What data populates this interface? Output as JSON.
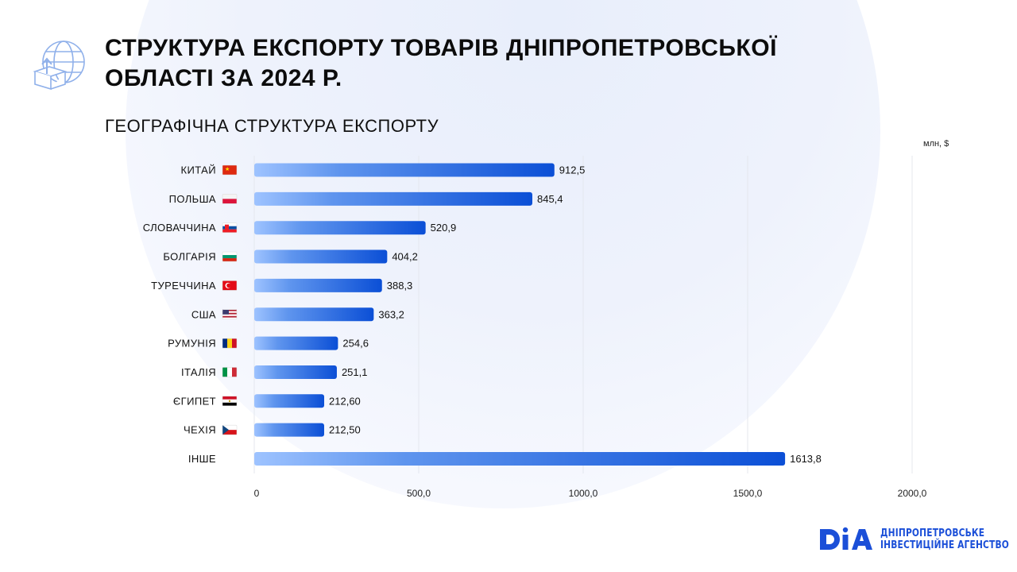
{
  "header": {
    "title_line1": "СТРУКТУРА ЕКСПОРТУ ТОВАРІВ ДНІПРОПЕТРОВСЬКОЇ",
    "title_line2": "ОБЛАСТІ ЗА 2024 Р.",
    "icon": "globe-export-icon"
  },
  "colors": {
    "bar_start": "#9ec3ff",
    "bar_end": "#0b4fd6",
    "brand": "#1b4fd8",
    "grid": "#e4e7ee"
  },
  "chart_data": {
    "type": "bar",
    "orientation": "horizontal",
    "title": "ГЕОГРАФІЧНА СТРУКТУРА ЕКСПОРТУ",
    "unit": "млн, $",
    "categories": [
      "КИТАЙ",
      "ПОЛЬША",
      "СЛОВАЧЧИНА",
      "БОЛГАРІЯ",
      "ТУРЕЧЧИНА",
      "США",
      "РУМУНІЯ",
      "ІТАЛІЯ",
      "ЄГИПЕТ",
      "ЧЕХІЯ",
      "ІНШЕ"
    ],
    "flags": [
      "cn",
      "pl",
      "sk",
      "bg",
      "tr",
      "us",
      "ro",
      "it",
      "eg",
      "cz",
      ""
    ],
    "values": [
      912.5,
      845.4,
      520.9,
      404.2,
      388.3,
      363.2,
      254.6,
      251.1,
      212.6,
      212.5,
      1613.8
    ],
    "value_labels": [
      "912,5",
      "845,4",
      "520,9",
      "404,2",
      "388,3",
      "363,2",
      "254,6",
      "251,1",
      "212,60",
      "212,50",
      "1613,8"
    ],
    "xlim": [
      0,
      2000
    ],
    "ticks": [
      0,
      500,
      1000,
      1500,
      2000
    ],
    "tick_labels": [
      "0",
      "500,0",
      "1000,0",
      "1500,0",
      "2000,0"
    ],
    "grid": true
  },
  "logo": {
    "mark": "DIA",
    "line1": "ДНІПРОПЕТРОВСЬКЕ",
    "line2": "ІНВЕСТИЦІЙНЕ АГЕНСТВО"
  }
}
